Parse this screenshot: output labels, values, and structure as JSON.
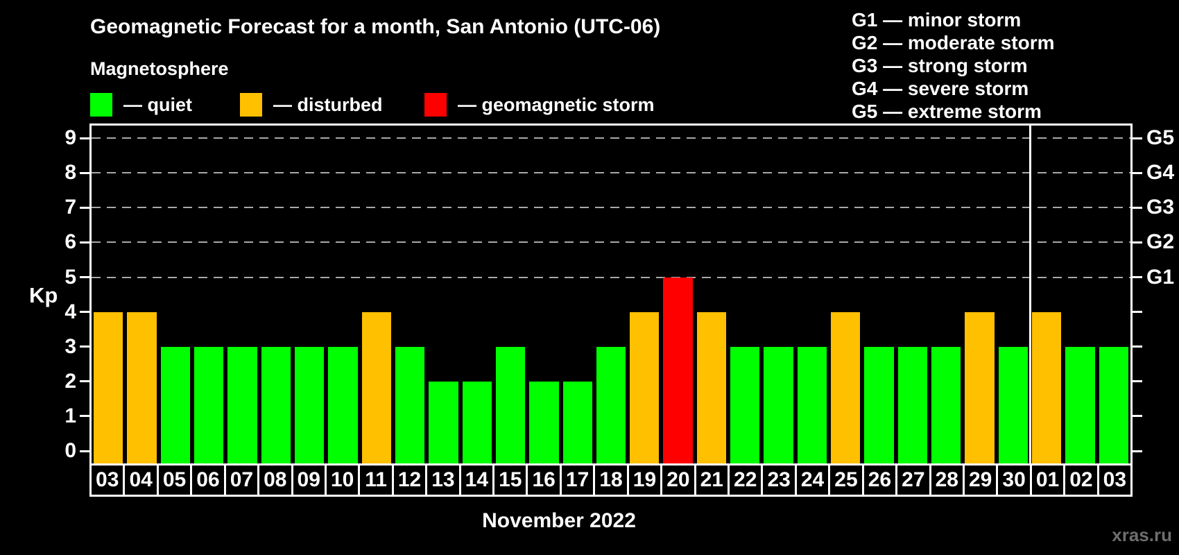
{
  "title": "Geomagnetic Forecast for a month, San Antonio (UTC-06)",
  "subtitle": "Magnetosphere",
  "legend": {
    "items": [
      {
        "name": "quiet",
        "label": "— quiet",
        "color": "#00ff00"
      },
      {
        "name": "disturbed",
        "label": "— disturbed",
        "color": "#ffc000"
      },
      {
        "name": "storm",
        "label": "— geomagnetic storm",
        "color": "#ff0000"
      }
    ]
  },
  "g_legend": [
    "G1 — minor storm",
    "G2 — moderate storm",
    "G3 — strong storm",
    "G4 — severe storm",
    "G5 — extreme storm"
  ],
  "axis": {
    "kp_label": "Kp",
    "y_ticks": [
      0,
      1,
      2,
      3,
      4,
      5,
      6,
      7,
      8,
      9
    ],
    "g_ticks": [
      {
        "label": "G1",
        "kp": 5
      },
      {
        "label": "G2",
        "kp": 6
      },
      {
        "label": "G3",
        "kp": 7
      },
      {
        "label": "G4",
        "kp": 8
      },
      {
        "label": "G5",
        "kp": 9
      }
    ],
    "x_label": "November 2022"
  },
  "watermark": "xras.ru",
  "chart_data": {
    "type": "bar",
    "title": "Geomagnetic Forecast for a month, San Antonio (UTC-06)",
    "xlabel": "November 2022",
    "ylabel": "Kp",
    "ylim": [
      0,
      9
    ],
    "grid_levels": [
      5,
      6,
      7,
      8,
      9
    ],
    "legend_position": "top",
    "categories": [
      "03",
      "04",
      "05",
      "06",
      "07",
      "08",
      "09",
      "10",
      "11",
      "12",
      "13",
      "14",
      "15",
      "16",
      "17",
      "18",
      "19",
      "20",
      "21",
      "22",
      "23",
      "24",
      "25",
      "26",
      "27",
      "28",
      "29",
      "30",
      "01",
      "02",
      "03"
    ],
    "values": [
      4,
      4,
      3,
      3,
      3,
      3,
      3,
      3,
      4,
      3,
      2,
      2,
      3,
      2,
      2,
      3,
      4,
      5,
      4,
      3,
      3,
      3,
      4,
      3,
      3,
      3,
      4,
      3,
      4,
      3,
      3
    ],
    "statuses": [
      "disturbed",
      "disturbed",
      "quiet",
      "quiet",
      "quiet",
      "quiet",
      "quiet",
      "quiet",
      "disturbed",
      "quiet",
      "quiet",
      "quiet",
      "quiet",
      "quiet",
      "quiet",
      "quiet",
      "disturbed",
      "storm",
      "disturbed",
      "quiet",
      "quiet",
      "quiet",
      "disturbed",
      "quiet",
      "quiet",
      "quiet",
      "disturbed",
      "quiet",
      "disturbed",
      "quiet",
      "quiet"
    ],
    "colors": {
      "quiet": "#00ff00",
      "disturbed": "#ffc000",
      "storm": "#ff0000"
    },
    "month_separator_after_index": 27
  }
}
